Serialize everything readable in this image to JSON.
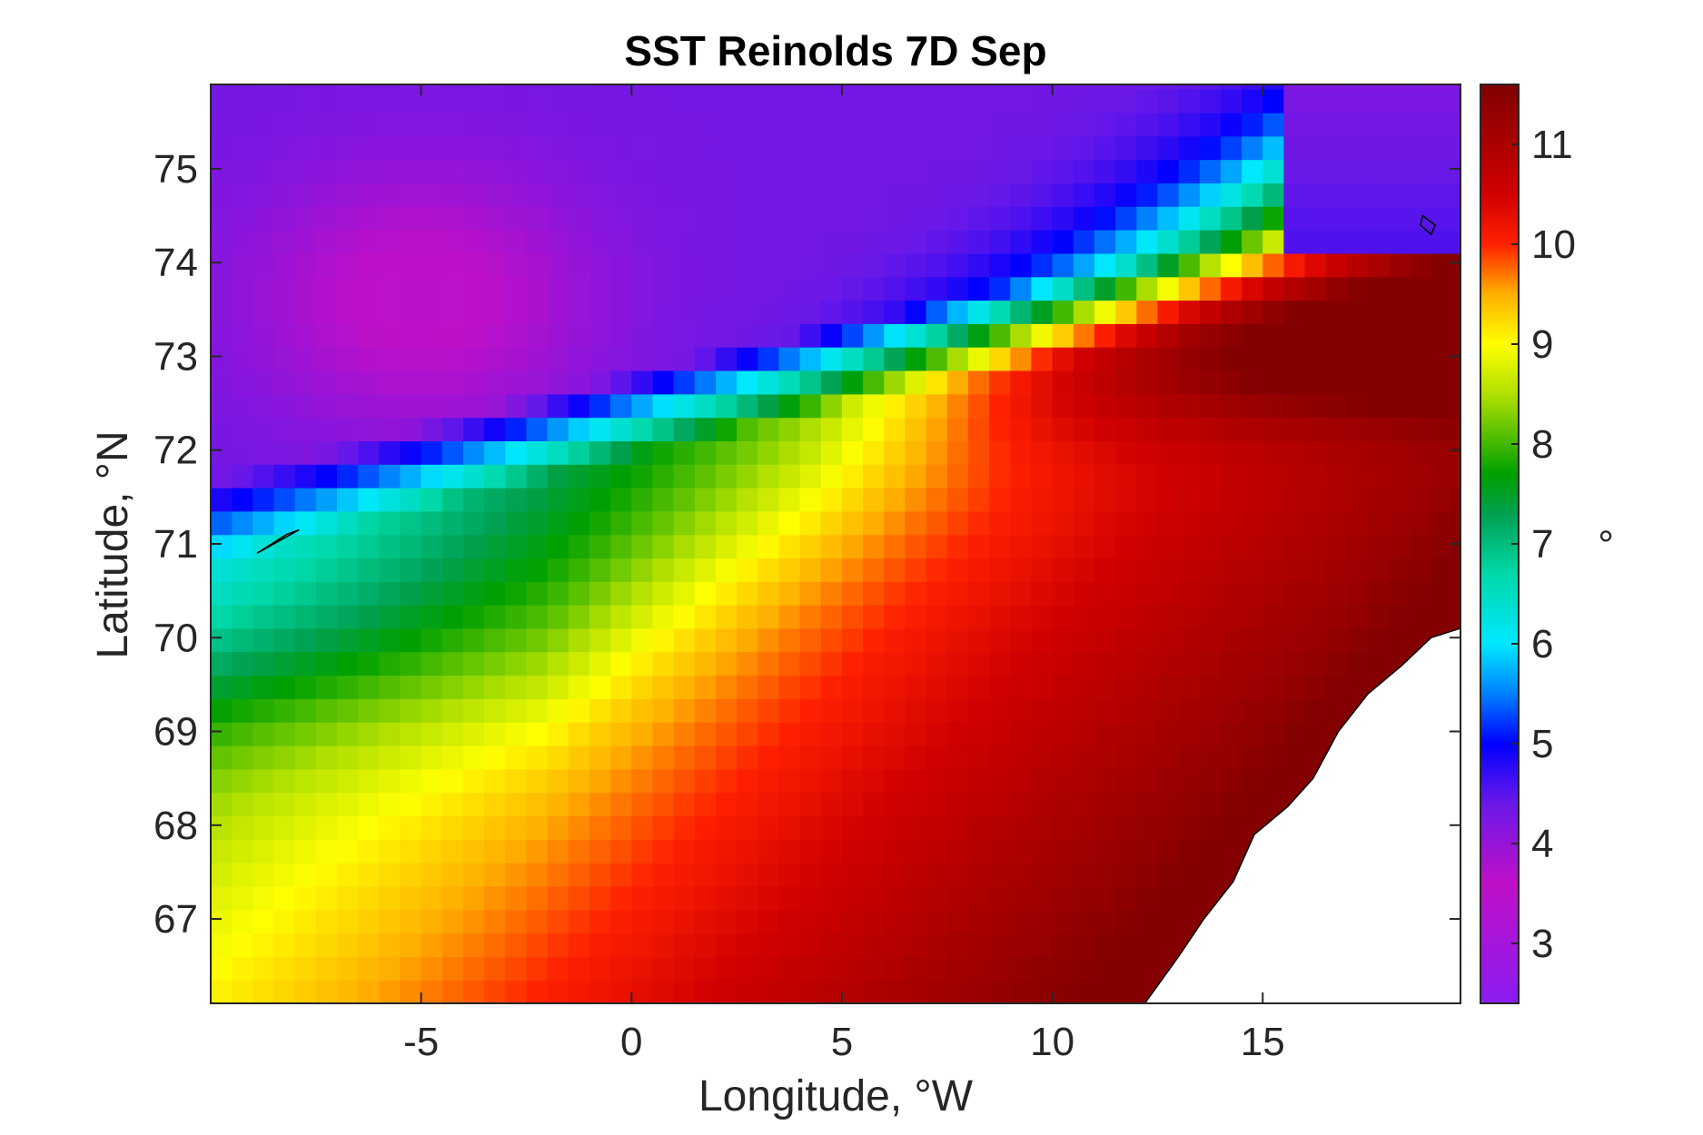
{
  "chart_data": {
    "type": "heatmap",
    "title": "SST Reinolds 7D Sep",
    "xlabel": "Longitude, °W",
    "ylabel": "Latitude, °N",
    "colorbar_label": "°",
    "xlim": [
      -10,
      19.7
    ],
    "ylim": [
      66.1,
      75.9
    ],
    "clim": [
      2.4,
      11.6
    ],
    "x_ticks": [
      -5,
      0,
      5,
      10,
      15
    ],
    "x_tick_labels": [
      "-5",
      "0",
      "5",
      "10",
      "15"
    ],
    "y_ticks": [
      67,
      68,
      69,
      70,
      71,
      72,
      73,
      74,
      75
    ],
    "y_tick_labels": [
      "67",
      "68",
      "69",
      "70",
      "71",
      "72",
      "73",
      "74",
      "75"
    ],
    "colorbar_ticks": [
      3,
      4,
      5,
      6,
      7,
      8,
      9,
      10,
      11
    ],
    "colorbar_tick_labels": [
      "3",
      "4",
      "5",
      "6",
      "7",
      "8",
      "9",
      "10",
      "11"
    ],
    "colormap": [
      {
        "value": 2.4,
        "color": "#8a1cf0"
      },
      {
        "value": 3.6,
        "color": "#c010c8"
      },
      {
        "value": 4.4,
        "color": "#6a18e8"
      },
      {
        "value": 5.0,
        "color": "#0000ff"
      },
      {
        "value": 5.5,
        "color": "#0080ff"
      },
      {
        "value": 6.0,
        "color": "#00e8ff"
      },
      {
        "value": 6.7,
        "color": "#00d8a8"
      },
      {
        "value": 7.3,
        "color": "#00a050"
      },
      {
        "value": 7.7,
        "color": "#00a000"
      },
      {
        "value": 8.5,
        "color": "#b0e000"
      },
      {
        "value": 9.0,
        "color": "#ffff00"
      },
      {
        "value": 9.5,
        "color": "#ffb000"
      },
      {
        "value": 10.0,
        "color": "#ff2000"
      },
      {
        "value": 10.5,
        "color": "#d00000"
      },
      {
        "value": 11.6,
        "color": "#800000"
      }
    ],
    "grid": false,
    "land_mask_color": "#ffffff",
    "coastline_color": "#000000"
  }
}
